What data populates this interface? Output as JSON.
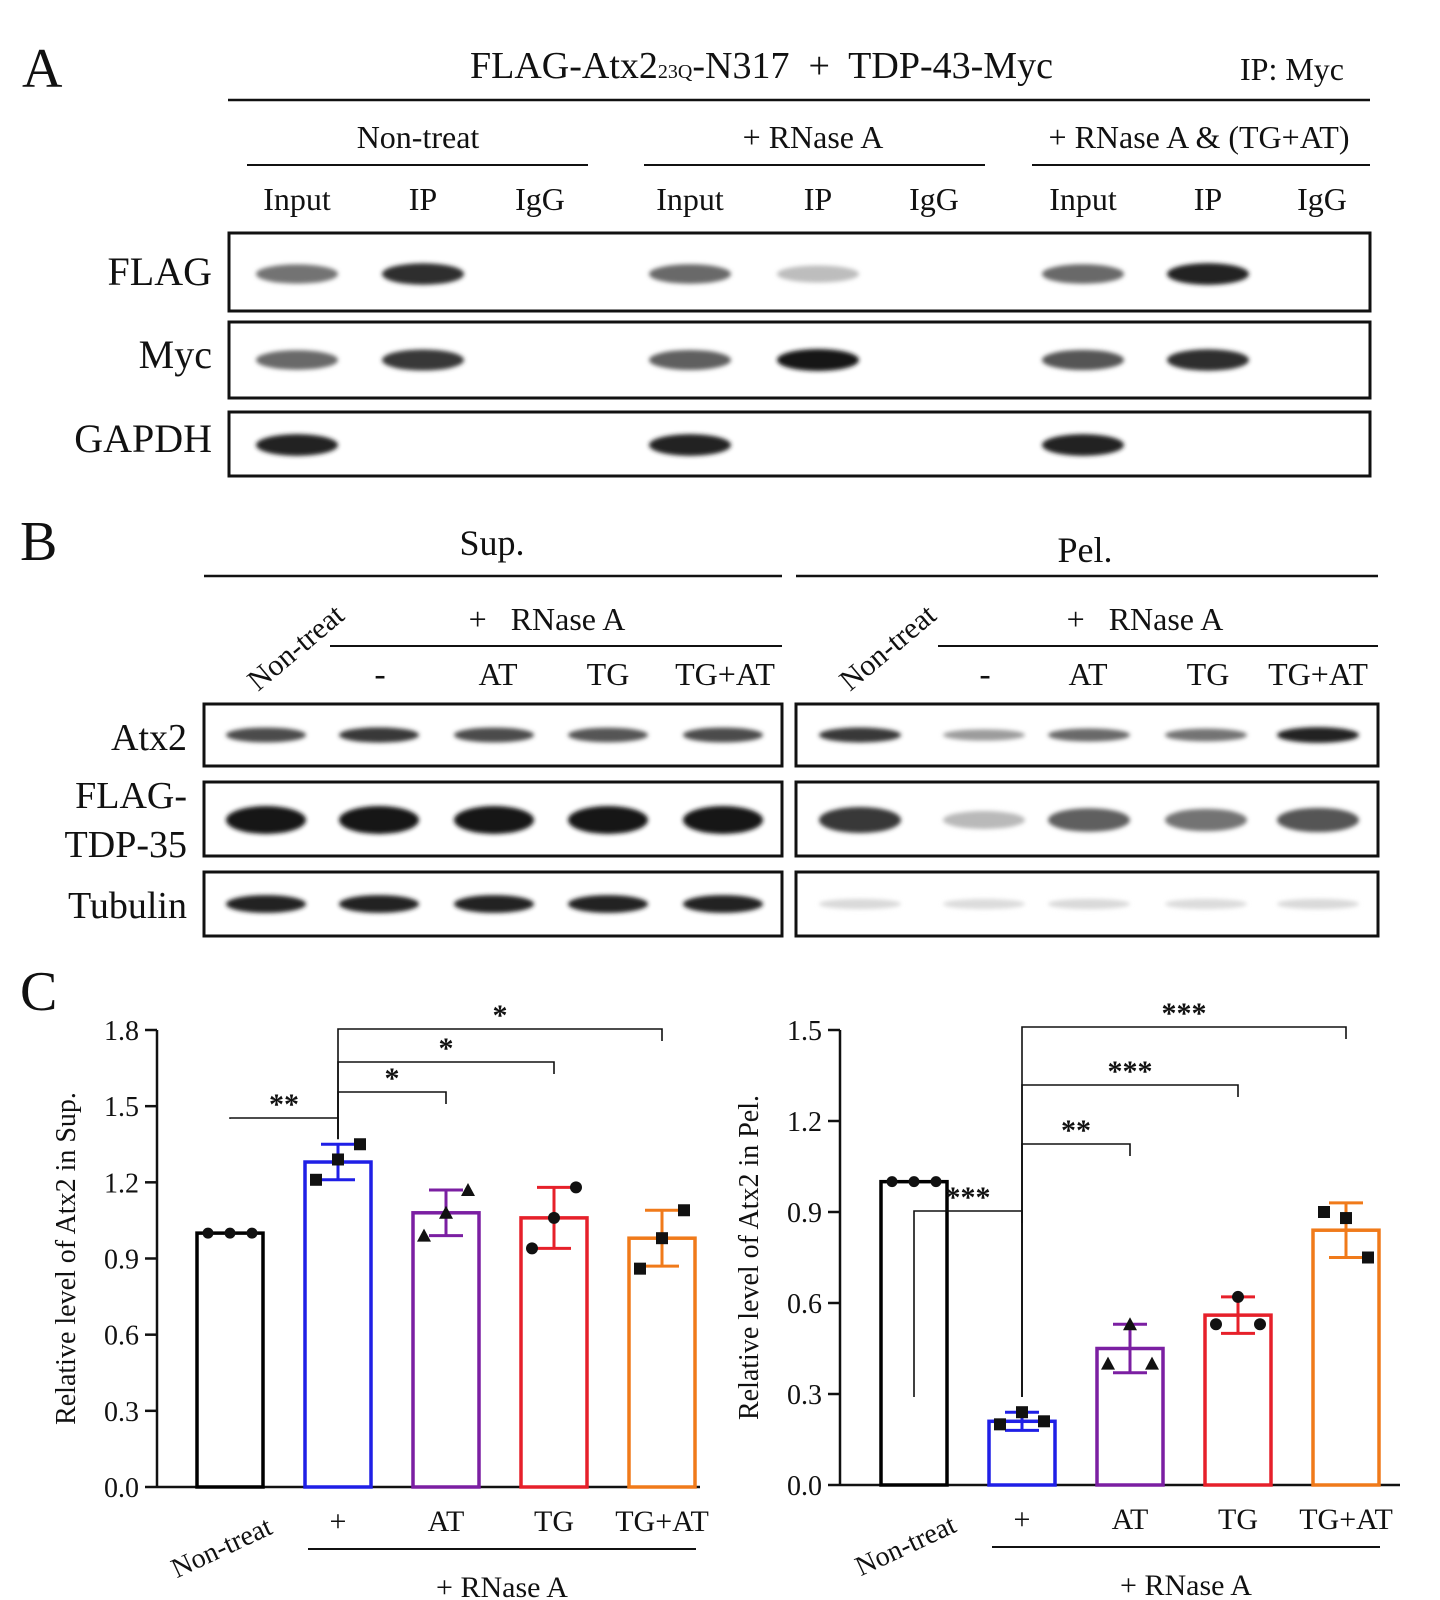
{
  "panel_a": {
    "letter": "A",
    "title_pre": "FLAG-Atx2",
    "title_sub": "23Q",
    "title_post": "-N317  +  TDP-43-Myc",
    "ip_label": "IP: Myc",
    "groups": [
      "Non-treat",
      "+ RNase A",
      "+ RNase A & (TG+AT)"
    ],
    "lanes": [
      "Input",
      "IP",
      "IgG",
      "Input",
      "IP",
      "IgG",
      "Input",
      "IP",
      "IgG"
    ],
    "rows": [
      {
        "label": "FLAG",
        "bands": [
          0.55,
          0.9,
          0,
          0.6,
          0.18,
          0,
          0.6,
          0.95,
          0
        ]
      },
      {
        "label": "Myc",
        "bands": [
          0.6,
          0.85,
          0,
          0.65,
          1.0,
          0,
          0.7,
          0.9,
          0
        ]
      },
      {
        "label": "GAPDH",
        "bands": [
          0.95,
          0,
          0,
          0.95,
          0,
          0,
          0.95,
          0,
          0
        ]
      }
    ]
  },
  "panel_b": {
    "letter": "B",
    "sup_label": "Sup.",
    "pel_label": "Pel.",
    "nontreat_label": "Non-treat",
    "rnase_label": "+   RNase A",
    "lanes": [
      "-",
      "AT",
      "TG",
      "TG+AT"
    ],
    "row_labels": [
      "Atx2",
      "FLAG-",
      "TDP-35",
      "Tubulin"
    ],
    "sup_rows": [
      [
        0.75,
        0.85,
        0.75,
        0.7,
        0.75
      ],
      [
        1.0,
        1.0,
        1.0,
        1.0,
        1.0
      ],
      [
        0.95,
        0.95,
        0.95,
        0.95,
        0.95
      ]
    ],
    "pel_rows": [
      [
        0.85,
        0.35,
        0.6,
        0.55,
        0.95
      ],
      [
        0.85,
        0.2,
        0.65,
        0.55,
        0.7
      ],
      [
        0.04,
        0.03,
        0.04,
        0.03,
        0.04
      ]
    ]
  },
  "panel_c": {
    "letter": "C",
    "rnase_label": "+ RNase A"
  },
  "chart_data": [
    {
      "type": "bar",
      "categories": [
        "Non-treat",
        "+",
        "AT",
        "TG",
        "TG+AT"
      ],
      "values": [
        1.0,
        1.28,
        1.08,
        1.06,
        0.98
      ],
      "errors": [
        0.0,
        0.07,
        0.09,
        0.12,
        0.11
      ],
      "points": [
        [
          1.0,
          1.0,
          1.0
        ],
        [
          1.21,
          1.29,
          1.35
        ],
        [
          0.99,
          1.08,
          1.17
        ],
        [
          0.94,
          1.06,
          1.18
        ],
        [
          0.86,
          0.98,
          1.09
        ]
      ],
      "colors": [
        "#000000",
        "#1f1fe6",
        "#7b1fa2",
        "#e6202a",
        "#f07a1a"
      ],
      "ylabel": "Relative level of Atx2 in Sup.",
      "ylim": [
        0,
        1.8
      ],
      "yticks": [
        "0.0",
        "0.3",
        "0.6",
        "0.9",
        "1.2",
        "1.5",
        "1.8"
      ],
      "group_label": "+ RNase A",
      "significance": [
        {
          "from": 0,
          "to": 1,
          "label": "**"
        },
        {
          "from": 1,
          "to": 2,
          "label": "*"
        },
        {
          "from": 1,
          "to": 3,
          "label": "*"
        },
        {
          "from": 1,
          "to": 4,
          "label": "*"
        }
      ]
    },
    {
      "type": "bar",
      "categories": [
        "Non-treat",
        "+",
        "AT",
        "TG",
        "TG+AT"
      ],
      "values": [
        1.0,
        0.21,
        0.45,
        0.56,
        0.84
      ],
      "errors": [
        0.0,
        0.03,
        0.08,
        0.06,
        0.09
      ],
      "points": [
        [
          1.0,
          1.0,
          1.0
        ],
        [
          0.2,
          0.24,
          0.21
        ],
        [
          0.4,
          0.53,
          0.4
        ],
        [
          0.53,
          0.62,
          0.53
        ],
        [
          0.9,
          0.88,
          0.75
        ]
      ],
      "colors": [
        "#000000",
        "#1f1fe6",
        "#7b1fa2",
        "#e6202a",
        "#f07a1a"
      ],
      "ylabel": "Relative level of Atx2 in Pel.",
      "ylim": [
        0,
        1.5
      ],
      "yticks": [
        "0.0",
        "0.3",
        "0.6",
        "0.9",
        "1.2",
        "1.5"
      ],
      "group_label": "+ RNase A",
      "significance": [
        {
          "from": 0,
          "to": 1,
          "label": "***"
        },
        {
          "from": 1,
          "to": 2,
          "label": "**"
        },
        {
          "from": 1,
          "to": 3,
          "label": "***"
        },
        {
          "from": 1,
          "to": 4,
          "label": "***"
        }
      ]
    }
  ]
}
